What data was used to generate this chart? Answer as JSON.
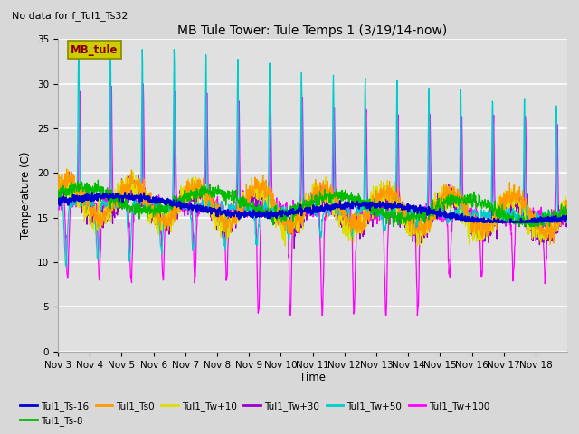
{
  "title": "MB Tule Tower: Tule Temps 1 (3/19/14-now)",
  "subtitle": "No data for f_Tul1_Ts32",
  "xlabel": "Time",
  "ylabel": "Temperature (C)",
  "ylim": [
    0,
    35
  ],
  "yticks": [
    0,
    5,
    10,
    15,
    20,
    25,
    30,
    35
  ],
  "x_labels": [
    "Nov 3",
    "Nov 4",
    "Nov 5",
    "Nov 6",
    "Nov 7",
    "Nov 8",
    "Nov 9",
    "Nov 10",
    "Nov 11",
    "Nov 12",
    "Nov 13",
    "Nov 14",
    "Nov 15",
    "Nov 16",
    "Nov 17",
    "Nov 18"
  ],
  "series_colors": {
    "Tul1_Ts-16": "#0000cc",
    "Tul1_Ts-8": "#00bb00",
    "Tul1_Ts0": "#ff9900",
    "Tul1_Tw+10": "#dddd00",
    "Tul1_Tw+30": "#9900cc",
    "Tul1_Tw+50": "#00cccc",
    "Tul1_Tw+100": "#ff00ff"
  },
  "legend_label": "MB_tule",
  "legend_box_facecolor": "#cccc00",
  "legend_box_edgecolor": "#888800",
  "legend_text_color": "#880000",
  "fig_facecolor": "#d8d8d8",
  "ax_facecolor": "#e0e0e0",
  "grid_color": "#ffffff",
  "n_days": 16
}
